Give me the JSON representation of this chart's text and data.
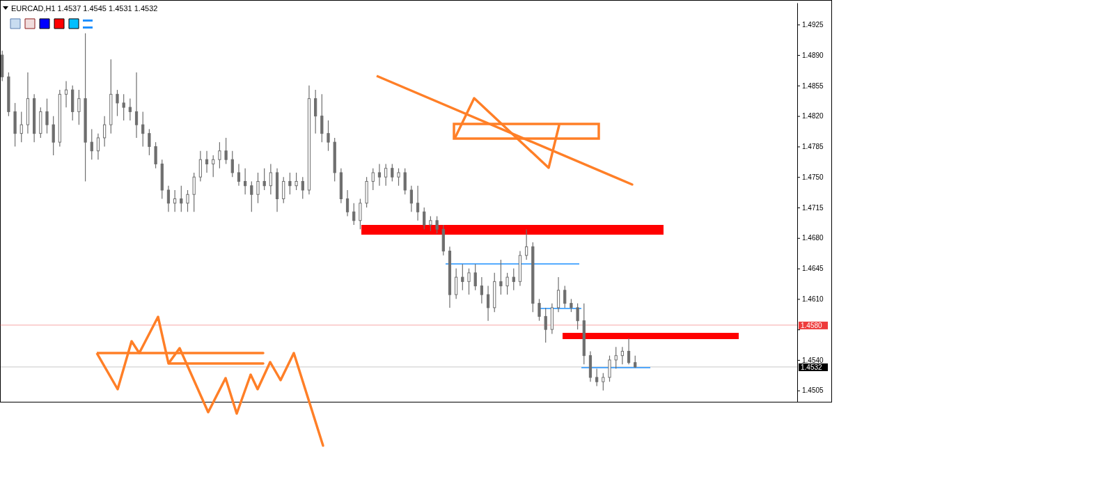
{
  "chart_data": {
    "type": "candlestick",
    "title": "EURCAD,H1  1.4537 1.4545 1.4531 1.4532",
    "categories": [
      null,
      null,
      null,
      null,
      null,
      null,
      null,
      null,
      null,
      null,
      null,
      null,
      null,
      null,
      null,
      null,
      null,
      null,
      null,
      null,
      null,
      null,
      null,
      null,
      null,
      null,
      null,
      null,
      null,
      null,
      null,
      null,
      null,
      null,
      null,
      null,
      null,
      null,
      null,
      null,
      null,
      null,
      null,
      null,
      null,
      null,
      null,
      null,
      null,
      null,
      null,
      null,
      null,
      null,
      null,
      null,
      null,
      null,
      null,
      null,
      null,
      null,
      null,
      null,
      null,
      null,
      null,
      null,
      null,
      null,
      null,
      null,
      null,
      null,
      null,
      null,
      null,
      null,
      null,
      null,
      null,
      null,
      null,
      null,
      null,
      null,
      null,
      null,
      null,
      null,
      null,
      null,
      null,
      null,
      null,
      null,
      null,
      null,
      null,
      null,
      null,
      null,
      null,
      null,
      null,
      null,
      null,
      null,
      null,
      null,
      null,
      null,
      null,
      null,
      null,
      null,
      null,
      null,
      null,
      null,
      null,
      null,
      null,
      null,
      null
    ],
    "ohlc": [
      [
        1.489,
        1.4895,
        1.486,
        1.4865
      ],
      [
        1.4865,
        1.487,
        1.482,
        1.4825
      ],
      [
        1.4825,
        1.4835,
        1.4785,
        1.48
      ],
      [
        1.48,
        1.4825,
        1.479,
        1.481
      ],
      [
        1.481,
        1.487,
        1.48,
        1.484
      ],
      [
        1.484,
        1.4845,
        1.479,
        1.48
      ],
      [
        1.48,
        1.483,
        1.4795,
        1.4825
      ],
      [
        1.4825,
        1.484,
        1.48,
        1.481
      ],
      [
        1.481,
        1.482,
        1.4775,
        1.479
      ],
      [
        1.479,
        1.485,
        1.4785,
        1.4845
      ],
      [
        1.4845,
        1.486,
        1.483,
        1.485
      ],
      [
        1.485,
        1.4855,
        1.4815,
        1.4825
      ],
      [
        1.4825,
        1.485,
        1.481,
        1.484
      ],
      [
        1.484,
        1.4915,
        1.4745,
        1.479
      ],
      [
        1.479,
        1.4805,
        1.477,
        1.478
      ],
      [
        1.478,
        1.48,
        1.477,
        1.4795
      ],
      [
        1.4795,
        1.482,
        1.4785,
        1.481
      ],
      [
        1.481,
        1.4885,
        1.48,
        1.4845
      ],
      [
        1.4845,
        1.485,
        1.482,
        1.4835
      ],
      [
        1.4835,
        1.4845,
        1.4815,
        1.483
      ],
      [
        1.483,
        1.484,
        1.4815,
        1.4825
      ],
      [
        1.4825,
        1.487,
        1.4795,
        1.481
      ],
      [
        1.481,
        1.4825,
        1.4785,
        1.48
      ],
      [
        1.48,
        1.4805,
        1.4775,
        1.4785
      ],
      [
        1.4785,
        1.479,
        1.476,
        1.4765
      ],
      [
        1.4765,
        1.477,
        1.4725,
        1.4735
      ],
      [
        1.4735,
        1.474,
        1.471,
        1.472
      ],
      [
        1.472,
        1.4735,
        1.471,
        1.4725
      ],
      [
        1.4725,
        1.474,
        1.471,
        1.472
      ],
      [
        1.472,
        1.4735,
        1.471,
        1.473
      ],
      [
        1.473,
        1.4755,
        1.471,
        1.475
      ],
      [
        1.475,
        1.478,
        1.4745,
        1.477
      ],
      [
        1.477,
        1.478,
        1.4755,
        1.4765
      ],
      [
        1.4765,
        1.4775,
        1.475,
        1.477
      ],
      [
        1.477,
        1.479,
        1.476,
        1.478
      ],
      [
        1.478,
        1.4795,
        1.4765,
        1.477
      ],
      [
        1.477,
        1.478,
        1.475,
        1.4755
      ],
      [
        1.4755,
        1.4765,
        1.474,
        1.4745
      ],
      [
        1.4745,
        1.476,
        1.473,
        1.474
      ],
      [
        1.474,
        1.4745,
        1.471,
        1.473
      ],
      [
        1.473,
        1.4755,
        1.472,
        1.4745
      ],
      [
        1.4745,
        1.476,
        1.4735,
        1.474
      ],
      [
        1.474,
        1.4765,
        1.473,
        1.4755
      ],
      [
        1.4755,
        1.476,
        1.471,
        1.4725
      ],
      [
        1.4725,
        1.475,
        1.472,
        1.4745
      ],
      [
        1.4745,
        1.4755,
        1.473,
        1.474
      ],
      [
        1.474,
        1.4755,
        1.4735,
        1.4745
      ],
      [
        1.4745,
        1.475,
        1.4725,
        1.4735
      ],
      [
        1.4735,
        1.4855,
        1.473,
        1.484
      ],
      [
        1.484,
        1.485,
        1.48,
        1.482
      ],
      [
        1.482,
        1.4845,
        1.479,
        1.48
      ],
      [
        1.48,
        1.4815,
        1.478,
        1.479
      ],
      [
        1.479,
        1.4795,
        1.4745,
        1.4755
      ],
      [
        1.4755,
        1.476,
        1.472,
        1.4725
      ],
      [
        1.4725,
        1.4735,
        1.4705,
        1.471
      ],
      [
        1.471,
        1.472,
        1.4695,
        1.47
      ],
      [
        1.47,
        1.4725,
        1.469,
        1.472
      ],
      [
        1.472,
        1.475,
        1.4715,
        1.4745
      ],
      [
        1.4745,
        1.476,
        1.4735,
        1.4755
      ],
      [
        1.4755,
        1.4765,
        1.474,
        1.475
      ],
      [
        1.475,
        1.4765,
        1.474,
        1.476
      ],
      [
        1.476,
        1.4765,
        1.4745,
        1.475
      ],
      [
        1.475,
        1.476,
        1.474,
        1.4755
      ],
      [
        1.4755,
        1.476,
        1.473,
        1.4735
      ],
      [
        1.4735,
        1.474,
        1.471,
        1.472
      ],
      [
        1.472,
        1.474,
        1.47,
        1.471
      ],
      [
        1.471,
        1.4715,
        1.469,
        1.4695
      ],
      [
        1.4695,
        1.4705,
        1.4688,
        1.47
      ],
      [
        1.47,
        1.4705,
        1.4685,
        1.469
      ],
      [
        1.469,
        1.4695,
        1.466,
        1.4665
      ],
      [
        1.4665,
        1.467,
        1.46,
        1.4615
      ],
      [
        1.4615,
        1.4645,
        1.461,
        1.4635
      ],
      [
        1.4635,
        1.465,
        1.462,
        1.463
      ],
      [
        1.463,
        1.4645,
        1.4615,
        1.464
      ],
      [
        1.464,
        1.465,
        1.462,
        1.4625
      ],
      [
        1.4625,
        1.4635,
        1.4605,
        1.4615
      ],
      [
        1.4615,
        1.4625,
        1.4585,
        1.46
      ],
      [
        1.46,
        1.464,
        1.4595,
        1.463
      ],
      [
        1.463,
        1.4655,
        1.4615,
        1.4625
      ],
      [
        1.4625,
        1.464,
        1.4615,
        1.4635
      ],
      [
        1.4635,
        1.4645,
        1.462,
        1.463
      ],
      [
        1.463,
        1.4665,
        1.4625,
        1.466
      ],
      [
        1.466,
        1.469,
        1.4655,
        1.467
      ],
      [
        1.467,
        1.4675,
        1.4595,
        1.4605
      ],
      [
        1.4605,
        1.461,
        1.4585,
        1.459
      ],
      [
        1.459,
        1.46,
        1.456,
        1.4575
      ],
      [
        1.4575,
        1.4605,
        1.457,
        1.46
      ],
      [
        1.46,
        1.4635,
        1.4595,
        1.462
      ],
      [
        1.462,
        1.4625,
        1.46,
        1.4605
      ],
      [
        1.4605,
        1.461,
        1.4595,
        1.46
      ],
      [
        1.46,
        1.4605,
        1.4575,
        1.4585
      ],
      [
        1.4585,
        1.4605,
        1.4535,
        1.4545
      ],
      [
        1.4545,
        1.455,
        1.4515,
        1.452
      ],
      [
        1.452,
        1.453,
        1.451,
        1.4515
      ],
      [
        1.4515,
        1.4525,
        1.4505,
        1.452
      ],
      [
        1.452,
        1.4545,
        1.4515,
        1.454
      ],
      [
        1.454,
        1.4555,
        1.453,
        1.4545
      ],
      [
        1.4545,
        1.4555,
        1.4535,
        1.455
      ],
      [
        1.455,
        1.4565,
        1.4535,
        1.4537
      ],
      [
        1.4537,
        1.4545,
        1.4531,
        1.4532
      ],
      null,
      null,
      null,
      null,
      null,
      null,
      null,
      null,
      null,
      null,
      null,
      null,
      null,
      null,
      null,
      null,
      null,
      null,
      null,
      null,
      null,
      null,
      null,
      null,
      null
    ],
    "ylim": [
      1.4492,
      1.495
    ],
    "yticks": [
      1.4505,
      {
        "value": 1.454,
        "label": "1.4540"
      },
      {
        "value": 1.4575,
        "label": null
      },
      {
        "value": 1.461,
        "label": "1.4610"
      },
      1.4645,
      {
        "value": 1.468,
        "label": "1.4680"
      },
      1.4715,
      {
        "value": 1.475,
        "label": "1.4750"
      },
      1.4785,
      {
        "value": 1.482,
        "label": "1.4820"
      },
      1.4855,
      {
        "value": 1.489,
        "label": "1.4890"
      },
      1.4925
    ],
    "tick_labels": "y",
    "ref_lines": [
      {
        "axis": "y",
        "value": 1.458,
        "label": "1.4580",
        "color": "#ee3b3b"
      },
      {
        "axis": "y",
        "value": 1.4532,
        "label": "1.4532",
        "color": "#000000"
      }
    ]
  }
}
